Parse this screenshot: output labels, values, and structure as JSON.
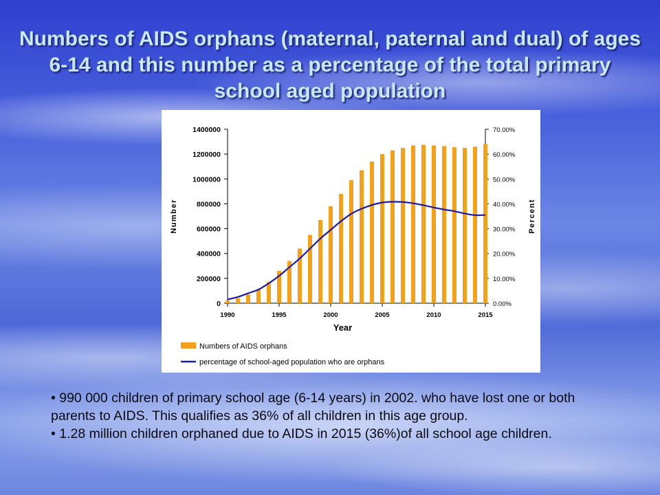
{
  "title": "Numbers of AIDS orphans (maternal, paternal and dual) of ages 6-14 and this number as a percentage of the total primary school aged population",
  "bullets": [
    "• 990 000 children of primary school age (6-14 years) in 2002. who have lost one or both parents to AIDS.  This qualifies as 36% of all children in this age group.",
    "• 1.28 million children orphaned due to AIDS in 2015 (36%)of all school age children."
  ],
  "chart_data": {
    "type": "bar",
    "xlabel": "Year",
    "ylabel": "Number",
    "y2label": "Percent",
    "ylim": [
      0,
      1400000
    ],
    "y2lim": [
      0,
      70
    ],
    "yticks": [
      "0",
      "200000",
      "400000",
      "600000",
      "800000",
      "1000000",
      "1200000",
      "1400000"
    ],
    "y2ticks": [
      "0.00%",
      "10.00%",
      "20.00%",
      "30.00%",
      "40.00%",
      "50.00%",
      "60.00%",
      "70.00%"
    ],
    "xticks": [
      "1990",
      "1995",
      "2000",
      "2005",
      "2010",
      "2015"
    ],
    "x": [
      1990,
      1991,
      1992,
      1993,
      1994,
      1995,
      1996,
      1997,
      1998,
      1999,
      2000,
      2001,
      2002,
      2003,
      2004,
      2005,
      2006,
      2007,
      2008,
      2009,
      2010,
      2011,
      2012,
      2013,
      2014,
      2015
    ],
    "series": [
      {
        "name": "Numbers of AIDS orphans",
        "kind": "bar",
        "axis": "left",
        "color": "#f5a01a",
        "values": [
          20000,
          40000,
          70000,
          110000,
          170000,
          260000,
          340000,
          440000,
          550000,
          670000,
          780000,
          880000,
          990000,
          1070000,
          1140000,
          1200000,
          1230000,
          1250000,
          1270000,
          1275000,
          1270000,
          1265000,
          1255000,
          1250000,
          1260000,
          1280000
        ]
      },
      {
        "name": "percentage of school-aged population who are orphans",
        "kind": "line",
        "axis": "right",
        "color": "#1a1aa8",
        "values": [
          1.5,
          2.5,
          4,
          5.5,
          8,
          11,
          14.5,
          18,
          22,
          26,
          29.5,
          33,
          36,
          38,
          39.5,
          40.5,
          40.8,
          40.7,
          40.2,
          39.4,
          38.5,
          37.7,
          37,
          36.1,
          35.4,
          35.5
        ]
      }
    ],
    "legend": "bottom-left"
  }
}
